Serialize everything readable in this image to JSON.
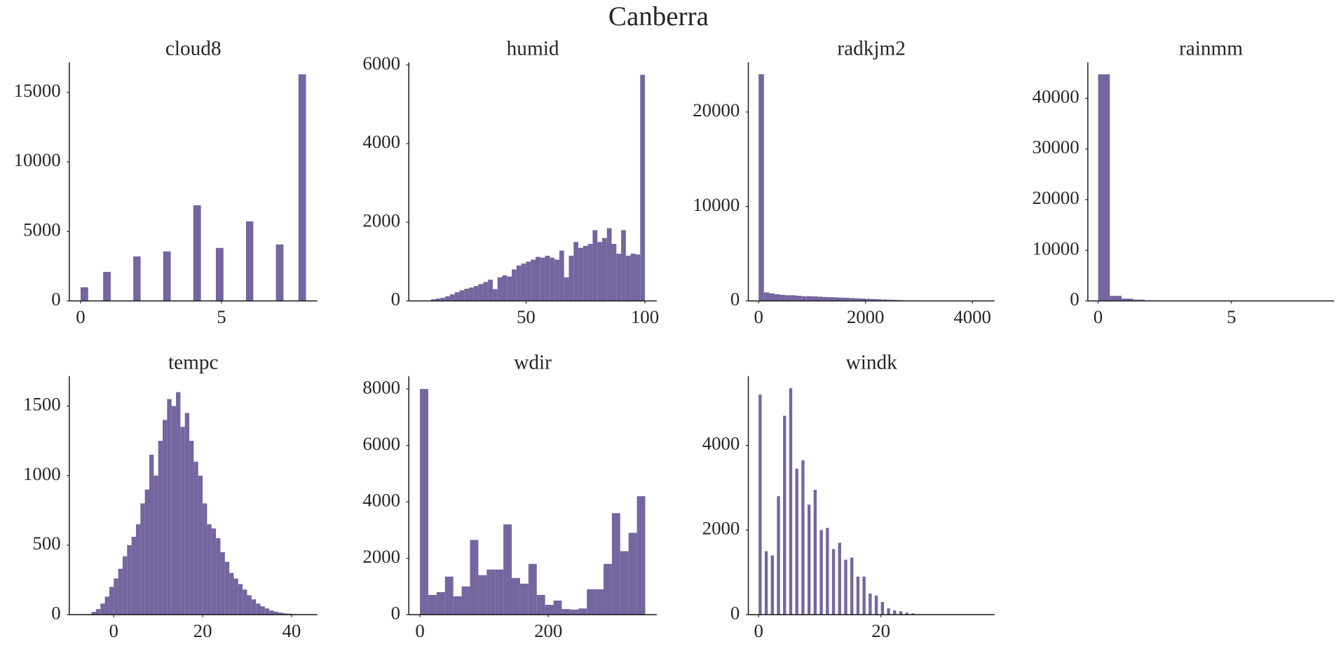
{
  "title": "Canberra",
  "chart_data": [
    {
      "type": "histogram",
      "title": "cloud8",
      "color": "#7566a0",
      "bins": [
        0,
        0.27,
        0.53,
        0.8,
        1.07,
        1.33,
        1.6,
        1.87,
        2.13,
        2.4,
        2.67,
        2.93,
        3.2,
        3.47,
        3.73,
        4,
        4.27,
        4.53,
        4.8,
        5.07,
        5.33,
        5.6,
        5.87,
        6.13,
        6.4,
        6.67,
        6.93,
        7.2,
        7.47,
        7.73,
        8
      ],
      "values": [
        980,
        0,
        0,
        2090,
        0,
        0,
        0,
        3200,
        0,
        0,
        0,
        3560,
        0,
        0,
        0,
        6880,
        0,
        0,
        3810,
        0,
        0,
        0,
        5720,
        0,
        0,
        0,
        4060,
        0,
        0,
        16290
      ],
      "xlim": [
        -0.4,
        8.4
      ],
      "xticks": [
        0,
        5
      ],
      "ylim": [
        0,
        17150
      ],
      "yticks": [
        0,
        5000,
        10000,
        15000
      ]
    },
    {
      "type": "histogram",
      "title": "humid",
      "color": "#7566a0",
      "bins": [
        8,
        10,
        12,
        14,
        16,
        18,
        20,
        22,
        24,
        26,
        28,
        30,
        32,
        34,
        36,
        38,
        40,
        42,
        44,
        46,
        48,
        50,
        52,
        54,
        56,
        58,
        60,
        62,
        64,
        66,
        68,
        70,
        72,
        74,
        76,
        78,
        80,
        82,
        84,
        86,
        88,
        90,
        92,
        94,
        96,
        98,
        100
      ],
      "values": [
        10,
        40,
        60,
        80,
        120,
        170,
        220,
        270,
        310,
        340,
        380,
        430,
        480,
        540,
        300,
        600,
        650,
        620,
        800,
        900,
        950,
        1000,
        1050,
        1120,
        1100,
        1150,
        1100,
        1050,
        1280,
        600,
        1150,
        1500,
        1350,
        1400,
        1450,
        1800,
        1500,
        1600,
        1850,
        1450,
        1200,
        1800,
        1150,
        1200,
        1180,
        5750
      ],
      "xlim": [
        0.7,
        105
      ],
      "xticks": [
        50,
        100
      ],
      "ylim": [
        0,
        6065
      ],
      "yticks": [
        0,
        2000,
        4000,
        6000
      ]
    },
    {
      "type": "histogram",
      "title": "radkjm2",
      "color": "#7566a0",
      "bins": [
        0,
        100,
        200,
        300,
        400,
        500,
        600,
        700,
        800,
        900,
        1000,
        1100,
        1200,
        1300,
        1400,
        1500,
        1600,
        1700,
        1800,
        1900,
        2000,
        2100,
        2200,
        2300,
        2400,
        2500,
        2600,
        2700,
        2800,
        2900,
        3000,
        3100,
        3200
      ],
      "values": [
        24000,
        900,
        800,
        700,
        650,
        600,
        600,
        550,
        500,
        500,
        480,
        450,
        420,
        400,
        380,
        350,
        330,
        300,
        280,
        250,
        220,
        200,
        180,
        150,
        130,
        110,
        90,
        70,
        50,
        40,
        30,
        20
      ],
      "xlim": [
        -192,
        4416
      ],
      "xticks": [
        0,
        2000,
        4000
      ],
      "ylim": [
        0,
        25250
      ],
      "yticks": [
        0,
        10000,
        20000
      ]
    },
    {
      "type": "histogram",
      "title": "rainmm",
      "color": "#7566a0",
      "bins": [
        0,
        0.44,
        0.88,
        1.32,
        1.76,
        2.2,
        2.64,
        3.08,
        3.52,
        3.96,
        4.4,
        4.84,
        5.28,
        5.72,
        6.16,
        6.6,
        7.04,
        7.48,
        7.92,
        8.36,
        8.8
      ],
      "values": [
        44730,
        1000,
        450,
        250,
        120,
        60,
        40,
        25,
        15,
        10,
        8,
        5,
        4,
        3,
        2,
        2,
        1,
        1,
        1,
        1
      ],
      "xlim": [
        -0.385,
        8.85
      ],
      "xticks": [
        0,
        5
      ],
      "ylim": [
        0,
        47090
      ],
      "yticks": [
        0,
        10000,
        20000,
        30000,
        40000
      ]
    },
    {
      "type": "histogram",
      "title": "tempc",
      "color": "#7566a0",
      "bins": [
        -6,
        -5,
        -4,
        -3,
        -2,
        -1,
        0,
        1,
        2,
        3,
        4,
        5,
        6,
        7,
        8,
        9,
        10,
        11,
        12,
        13,
        14,
        15,
        16,
        17,
        18,
        19,
        20,
        21,
        22,
        23,
        24,
        25,
        26,
        27,
        28,
        29,
        30,
        31,
        32,
        33,
        34,
        35,
        36,
        37,
        38,
        39,
        40,
        41,
        42,
        43
      ],
      "values": [
        5,
        20,
        40,
        80,
        130,
        200,
        260,
        330,
        420,
        500,
        560,
        650,
        800,
        900,
        1150,
        1000,
        1250,
        1400,
        1550,
        1500,
        1600,
        1350,
        1450,
        1250,
        1100,
        1000,
        800,
        650,
        620,
        550,
        450,
        380,
        300,
        260,
        220,
        180,
        140,
        110,
        80,
        60,
        45,
        30,
        22,
        15,
        10,
        7,
        5,
        3,
        2
      ],
      "xlim": [
        -10,
        45.8
      ],
      "xticks": [
        0,
        20,
        40
      ],
      "ylim": [
        0,
        1715
      ],
      "yticks": [
        0,
        500,
        1000,
        1500
      ]
    },
    {
      "type": "histogram",
      "title": "wdir",
      "color": "#7566a0",
      "bins": [
        0,
        13,
        26,
        39,
        52,
        65,
        78,
        91,
        104,
        117,
        130,
        143,
        156,
        169,
        182,
        195,
        208,
        221,
        234,
        247,
        260,
        273,
        286,
        299,
        312,
        325,
        338,
        351
      ],
      "values": [
        8000,
        700,
        800,
        1350,
        650,
        1000,
        2650,
        1400,
        1600,
        1600,
        3200,
        1300,
        1100,
        1800,
        700,
        350,
        500,
        200,
        180,
        220,
        900,
        900,
        1800,
        3600,
        2250,
        2900,
        4200
      ],
      "xlim": [
        -17.3,
        369
      ],
      "xticks": [
        0,
        200
      ],
      "ylim": [
        0,
        8455
      ],
      "yticks": [
        0,
        2000,
        4000,
        6000,
        8000
      ]
    },
    {
      "type": "histogram",
      "title": "windk",
      "color": "#7566a0",
      "bins": [
        0,
        0.5,
        1,
        1.5,
        2,
        2.5,
        3,
        3.5,
        4,
        4.5,
        5,
        5.5,
        6,
        6.5,
        7,
        7.5,
        8,
        8.5,
        9,
        9.5,
        10,
        10.5,
        11,
        11.5,
        12,
        12.5,
        13,
        13.5,
        14,
        14.5,
        15,
        15.5,
        16,
        16.5,
        17,
        17.5,
        18,
        18.5,
        19,
        19.5,
        20,
        20.5,
        21,
        21.5,
        22,
        22.5,
        23,
        23.5,
        24,
        24.5,
        25,
        25.5
      ],
      "values": [
        5200,
        0,
        1500,
        0,
        1400,
        0,
        2800,
        0,
        4700,
        0,
        5350,
        0,
        3450,
        0,
        3650,
        0,
        2600,
        0,
        2950,
        0,
        2000,
        0,
        2050,
        0,
        1550,
        0,
        1700,
        0,
        1300,
        0,
        1350,
        0,
        900,
        0,
        900,
        0,
        500,
        0,
        450,
        0,
        300,
        0,
        150,
        0,
        100,
        0,
        80,
        0,
        50,
        0,
        30
      ],
      "xlim": [
        -1.68,
        38.6
      ],
      "xticks": [
        0,
        20
      ],
      "ylim": [
        0,
        5636
      ],
      "yticks": [
        0,
        2000,
        4000
      ]
    }
  ]
}
